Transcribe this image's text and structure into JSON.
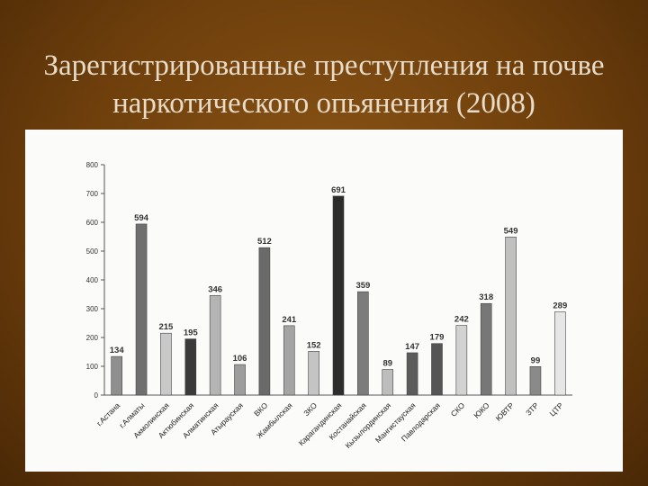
{
  "slide": {
    "title": "Зарегистрированные преступления на почве наркотического опьянения (2008)"
  },
  "chart_data": {
    "type": "bar",
    "title": "",
    "xlabel": "",
    "ylabel": "",
    "ylim": [
      0,
      800
    ],
    "yticks": [
      0,
      100,
      200,
      300,
      400,
      500,
      600,
      700,
      800
    ],
    "grid": false,
    "categories": [
      "г.Астана",
      "г.Алматы",
      "Акмолинская",
      "Актюбинская",
      "Алматинская",
      "Атырауская",
      "ВКО",
      "Жамбылская",
      "ЗКО",
      "Карагандинская",
      "Костанайская",
      "Кызылординская",
      "Мангистауская",
      "Павлодарская",
      "СКО",
      "ЮКО",
      "ЮВТР",
      "ЗТР",
      "ЦТР"
    ],
    "values": [
      134,
      594,
      215,
      195,
      346,
      106,
      512,
      241,
      152,
      691,
      359,
      89,
      147,
      179,
      242,
      318,
      549,
      99,
      289
    ],
    "bar_colors": [
      "#8f8f8f",
      "#6f6f6f",
      "#c9c9c9",
      "#3a3a3a",
      "#b4b4b4",
      "#9d9d9d",
      "#6a6a6a",
      "#a4a4a4",
      "#c4c4c4",
      "#2c2c2c",
      "#7c7c7c",
      "#bdbdbd",
      "#5c5c5c",
      "#555555",
      "#d2d2d2",
      "#777777",
      "#c0c0c0",
      "#8a8a8a",
      "#e6e6e6"
    ]
  }
}
